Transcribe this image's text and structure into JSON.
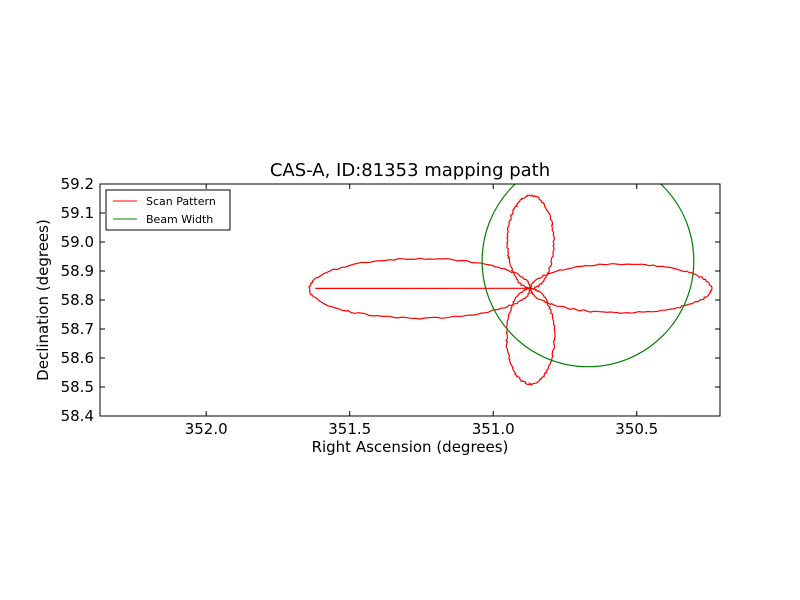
{
  "chart_data": {
    "type": "line",
    "title": "CAS-A, ID:81353 mapping path",
    "xlabel": "Right Ascension (degrees)",
    "ylabel": "Declination (degrees)",
    "xlim": [
      352.37,
      350.21
    ],
    "ylim": [
      58.4,
      59.2
    ],
    "xticks": [
      352.0,
      351.5,
      351.0,
      350.5
    ],
    "xtick_labels": [
      "352.0",
      "351.5",
      "351.0",
      "350.5"
    ],
    "yticks": [
      58.4,
      58.5,
      58.6,
      58.7,
      58.8,
      58.9,
      59.0,
      59.1,
      59.2
    ],
    "ytick_labels": [
      "58.4",
      "58.5",
      "58.6",
      "58.7",
      "58.8",
      "58.9",
      "59.0",
      "59.1",
      "59.2"
    ],
    "grid": false,
    "legend_position": "top-left",
    "series": [
      {
        "name": "Scan Pattern",
        "color": "#ff0000",
        "center": [
          350.87,
          58.84
        ],
        "petals": [
          {
            "angle_deg": 180,
            "length_deg": 0.77,
            "width": 0.27
          },
          {
            "angle_deg": 0,
            "length_deg": 0.63,
            "width": 0.27
          },
          {
            "angle_deg": 90,
            "length_deg": 0.32,
            "width": 0.5
          },
          {
            "angle_deg": 270,
            "length_deg": 0.33,
            "width": 0.5
          }
        ],
        "start": [
          351.62,
          58.84
        ]
      },
      {
        "name": "Beam Width",
        "color": "#008000",
        "center": [
          350.67,
          58.935
        ],
        "radius_deg": 0.365
      }
    ]
  }
}
